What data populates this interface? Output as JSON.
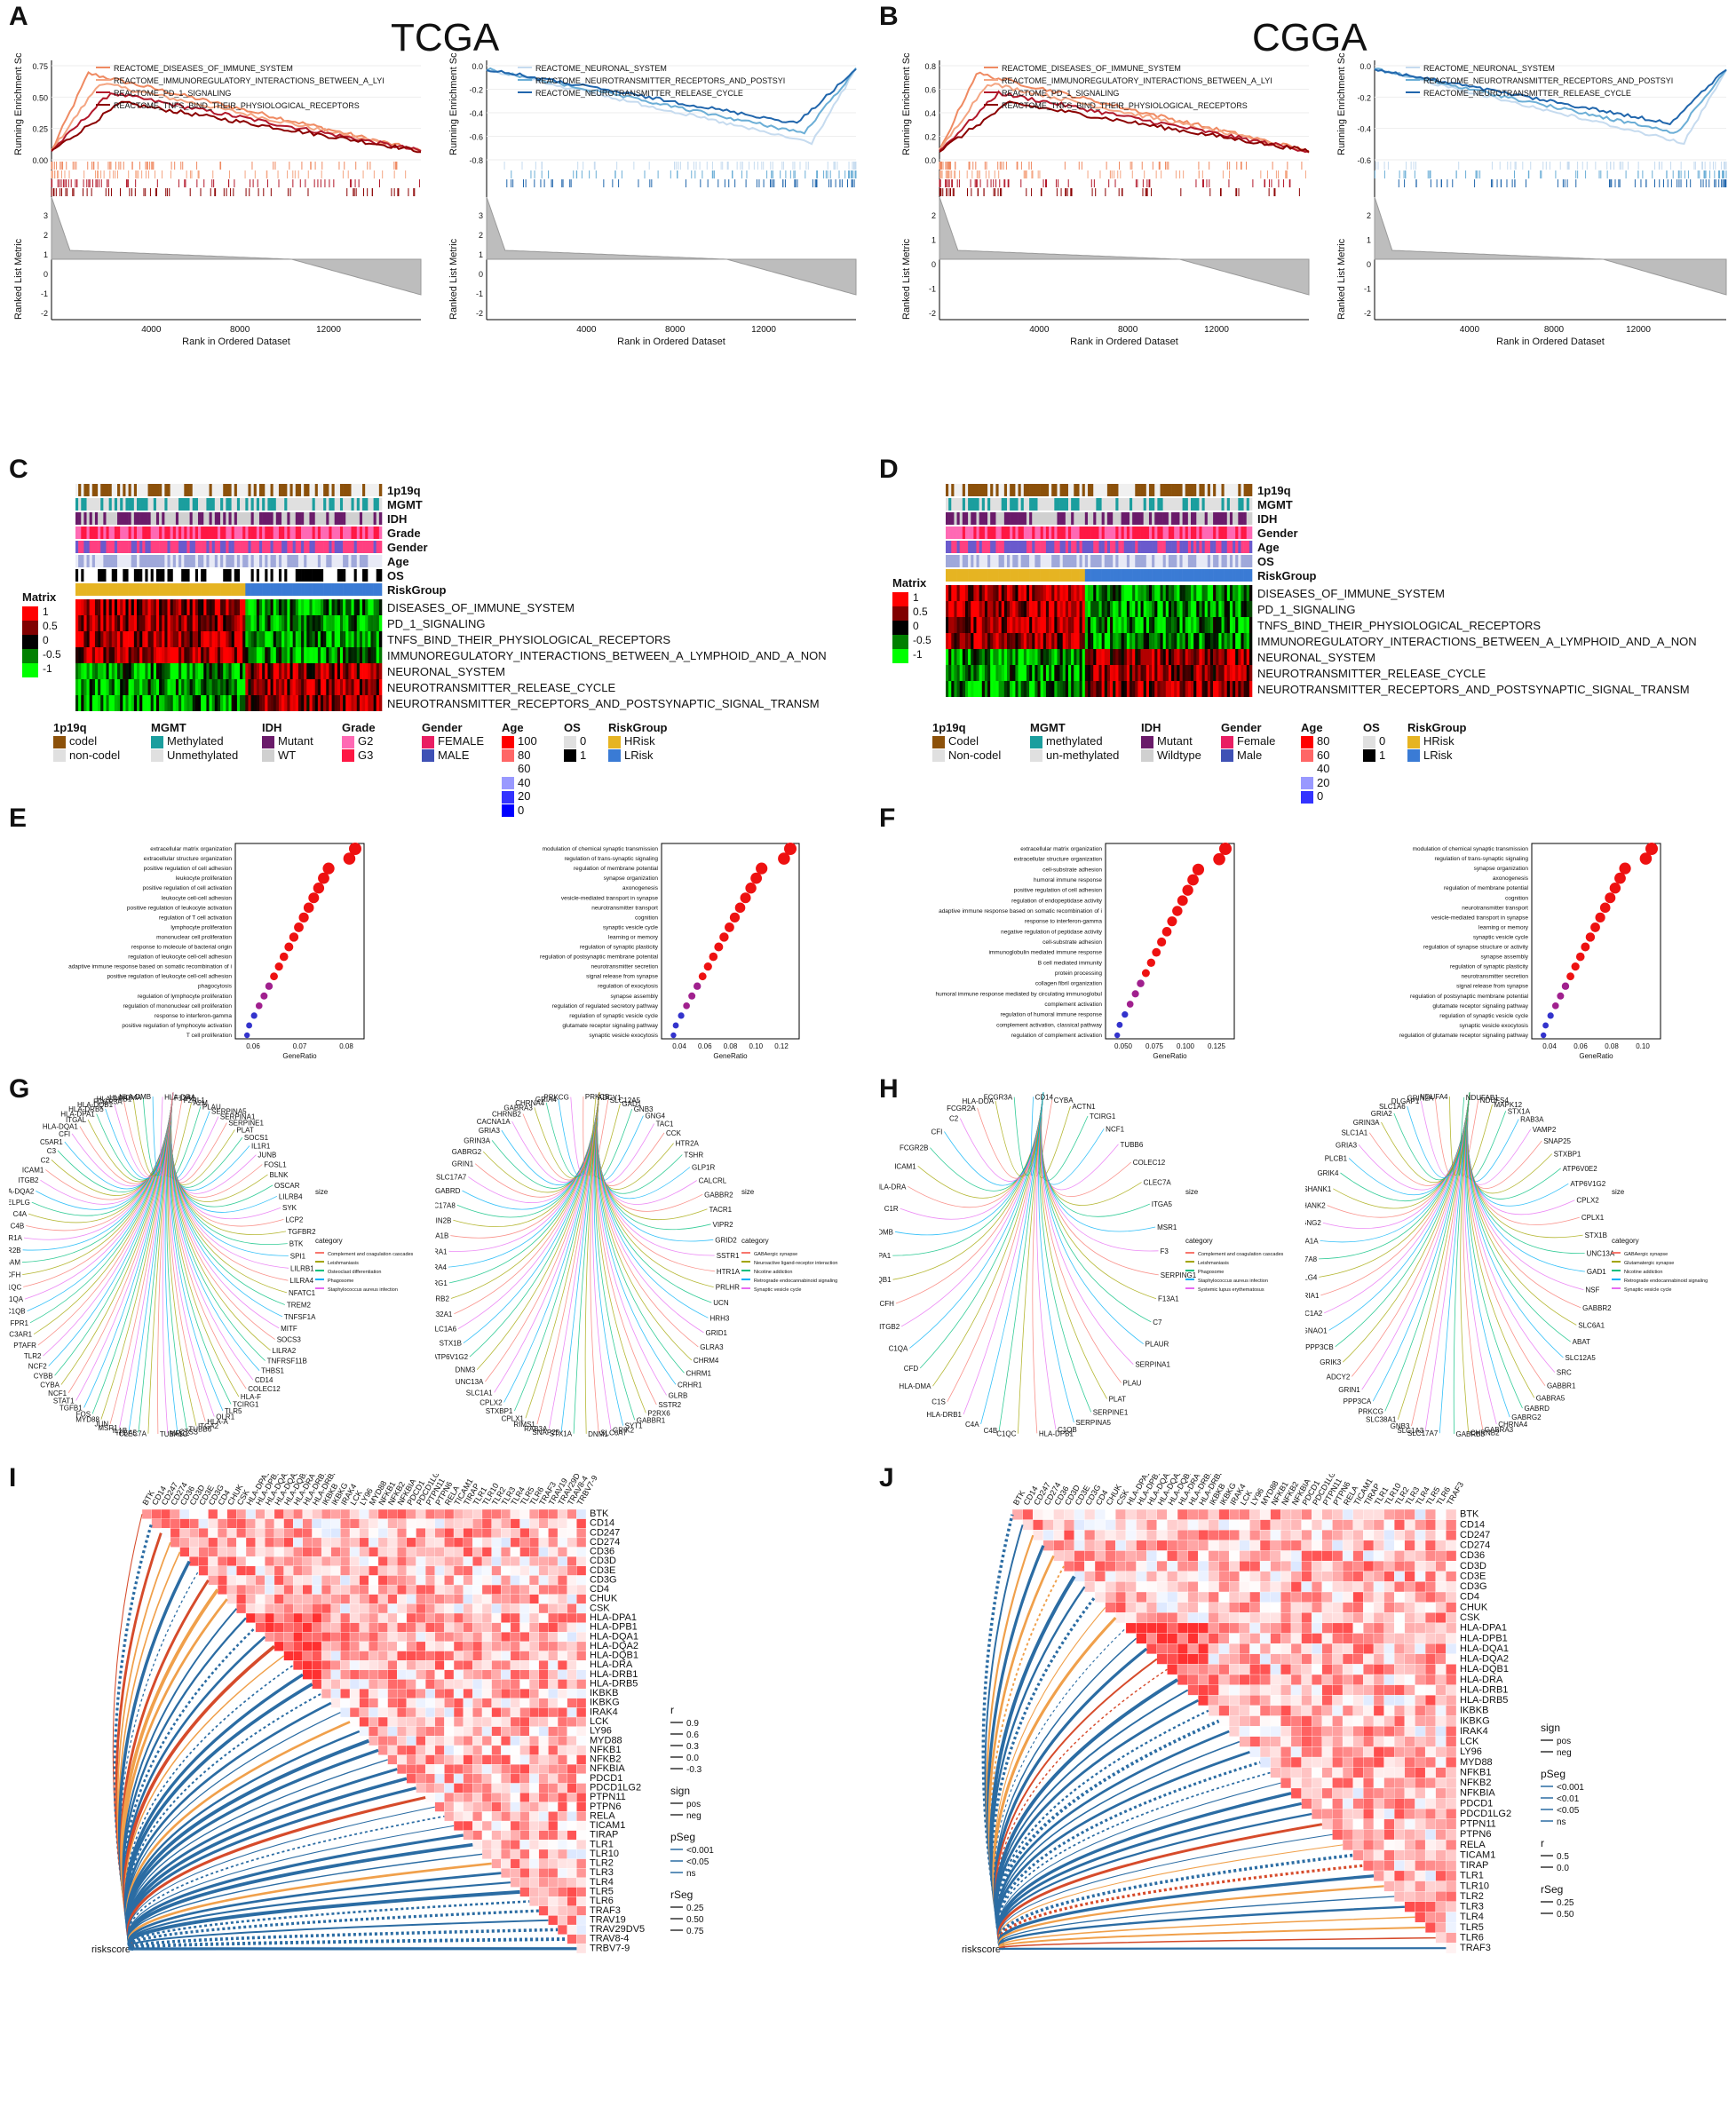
{
  "panels": {
    "A": "A",
    "B": "B",
    "C": "C",
    "D": "D",
    "E": "E",
    "F": "F",
    "G": "G",
    "H": "H",
    "I": "I",
    "J": "J"
  },
  "titles": {
    "tcga": "TCGA",
    "cgga": "CGGA"
  },
  "gsea": {
    "ylabel_top": "Running Enrichment Score",
    "ylabel_bottom": "Ranked List Metric",
    "xlabel": "Rank in Ordered Dataset",
    "xticks": [
      "4000",
      "8000",
      "12000"
    ],
    "rank_ticks": [
      "3",
      "2",
      "1",
      "0",
      "-1",
      "-2"
    ],
    "rank_ticks_b": [
      "2",
      "1",
      "0",
      "-1",
      "-2"
    ],
    "immune_terms": [
      "REACTOME_DISEASES_OF_IMMUNE_SYSTEM",
      "REACTOME_IMMUNOREGULATORY_INTERACTIONS_BETWEEN_A_LYI",
      "REACTOME_PD_1_SIGNALING",
      "REACTOME_TNFS_BIND_THEIR_PHYSIOLOGICAL_RECEPTORS"
    ],
    "neuro_terms": [
      "REACTOME_NEURONAL_SYSTEM",
      "REACTOME_NEUROTRANSMITTER_RECEPTORS_AND_POSTSYI",
      "REACTOME_NEUROTRANSMITTER_RELEASE_CYCLE"
    ],
    "A_immune_yticks": [
      "0.75",
      "0.50",
      "0.25",
      "0.00"
    ],
    "A_neuro_yticks": [
      "0.0",
      "-0.2",
      "-0.4",
      "-0.6",
      "-0.8"
    ],
    "B_immune_yticks": [
      "0.8",
      "0.6",
      "0.4",
      "0.2",
      "0.0"
    ],
    "B_neuro_yticks": [
      "0.0",
      "-0.2",
      "-0.4",
      "-0.6"
    ]
  },
  "heatmap": {
    "annot_rows": [
      "1p19q",
      "MGMT",
      "IDH",
      "Grade",
      "Gender",
      "Age",
      "OS",
      "RiskGroup"
    ],
    "annot_rows_D": [
      "1p19q",
      "MGMT",
      "IDH",
      "Gender",
      "Age",
      "OS",
      "RiskGroup"
    ],
    "pathways": [
      "DISEASES_OF_IMMUNE_SYSTEM",
      "PD_1_SIGNALING",
      "TNFS_BIND_THEIR_PHYSIOLOGICAL_RECEPTORS",
      "IMMUNOREGULATORY_INTERACTIONS_BETWEEN_A_LYMPHOID_AND_A_NON",
      "NEURONAL_SYSTEM",
      "NEUROTRANSMITTER_RELEASE_CYCLE",
      "NEUROTRANSMITTER_RECEPTORS_AND_POSTSYNAPTIC_SIGNAL_TRANSM"
    ],
    "matrix_title": "Matrix",
    "matrix_ticks": [
      "1",
      "0.5",
      "0",
      "-0.5",
      "-1"
    ],
    "legend_C": {
      "p1p19q": {
        "title": "1p19q",
        "items": [
          "codel",
          "non-codel"
        ]
      },
      "mgmt": {
        "title": "MGMT",
        "items": [
          "Methylated",
          "Unmethylated"
        ]
      },
      "idh": {
        "title": "IDH",
        "items": [
          "Mutant",
          "WT"
        ]
      },
      "grade": {
        "title": "Grade",
        "items": [
          "G2",
          "G3"
        ]
      },
      "gender": {
        "title": "Gender",
        "items": [
          "FEMALE",
          "MALE"
        ]
      },
      "age": {
        "title": "Age",
        "ticks": [
          "100",
          "80",
          "60",
          "40",
          "20",
          "0"
        ]
      },
      "os": {
        "title": "OS",
        "items": [
          "0",
          "1"
        ]
      },
      "risk": {
        "title": "RiskGroup",
        "items": [
          "HRisk",
          "LRisk"
        ]
      }
    },
    "legend_D": {
      "p1p19q": {
        "title": "1p19q",
        "items": [
          "Codel",
          "Non-codel"
        ]
      },
      "mgmt": {
        "title": "MGMT",
        "items": [
          "methylated",
          "un-methylated"
        ]
      },
      "idh": {
        "title": "IDH",
        "items": [
          "Mutant",
          "Wildtype"
        ]
      },
      "gender": {
        "title": "Gender",
        "items": [
          "Female",
          "Male"
        ]
      },
      "age": {
        "title": "Age",
        "ticks": [
          "80",
          "60",
          "40",
          "20",
          "0"
        ]
      },
      "os": {
        "title": "OS",
        "items": [
          "0",
          "1"
        ]
      },
      "risk": {
        "title": "RiskGroup",
        "items": [
          "HRisk",
          "LRisk"
        ]
      }
    }
  },
  "dotplots": {
    "xlabel": "GeneRatio",
    "E1_terms": [
      "extracellular matrix organization",
      "extracellular structure organization",
      "positive regulation of cell adhesion",
      "leukocyte proliferation",
      "positive regulation of cell activation",
      "leukocyte cell-cell adhesion",
      "positive regulation of leukocyte activation",
      "regulation of T cell activation",
      "lymphocyte proliferation",
      "mononuclear cell proliferation",
      "response to molecule of bacterial origin",
      "regulation of leukocyte cell-cell adhesion",
      "adaptive immune response based on somatic recombination of immune receptors built from immunoglobulin superfamily domains",
      "positive regulation of leukocyte cell-cell adhesion",
      "phagocytosis",
      "regulation of lymphocyte proliferation",
      "regulation of mononuclear cell proliferation",
      "response to interferon-gamma",
      "positive regulation of lymphocyte activation",
      "T cell proliferation"
    ],
    "E1_xticks": [
      "0.06",
      "0.07",
      "0.08"
    ],
    "E2_terms": [
      "modulation of chemical synaptic transmission",
      "regulation of trans-synaptic signaling",
      "regulation of membrane potential",
      "synapse organization",
      "axonogenesis",
      "vesicle-mediated transport in synapse",
      "neurotransmitter transport",
      "cognition",
      "synaptic vesicle cycle",
      "learning or memory",
      "regulation of synaptic plasticity",
      "regulation of postsynaptic membrane potential",
      "neurotransmitter secretion",
      "signal release from synapse",
      "regulation of exocytosis",
      "synapse assembly",
      "regulation of regulated secretory pathway",
      "regulation of synaptic vesicle cycle",
      "glutamate receptor signaling pathway",
      "synaptic vesicle exocytosis"
    ],
    "E2_xticks": [
      "0.04",
      "0.06",
      "0.08",
      "0.10",
      "0.12"
    ],
    "F1_terms": [
      "extracellular matrix organization",
      "extracellular structure organization",
      "cell-substrate adhesion",
      "humoral immune response",
      "positive regulation of cell adhesion",
      "regulation of endopeptidase activity",
      "adaptive immune response based on somatic recombination of immune receptors built from immunoglobulin superfamily domains",
      "response to interferon-gamma",
      "negative regulation of peptidase activity",
      "cell-substrate adhesion",
      "immunoglobulin mediated immune response",
      "B cell mediated immunity",
      "protein processing",
      "collagen fibril organization",
      "humoral immune response mediated by circulating immunoglobulin",
      "complement activation",
      "regulation of humoral immune response",
      "complement activation, classical pathway",
      "regulation of complement activation"
    ],
    "F1_xticks": [
      "0.050",
      "0.075",
      "0.100",
      "0.125"
    ],
    "F2_terms": [
      "modulation of chemical synaptic transmission",
      "regulation of trans-synaptic signaling",
      "synapse organization",
      "axonogenesis",
      "regulation of membrane potential",
      "cognition",
      "neurotransmitter transport",
      "vesicle-mediated transport in synapse",
      "learning or memory",
      "synaptic vesicle cycle",
      "regulation of synapse structure or activity",
      "synapse assembly",
      "regulation of synaptic plasticity",
      "neurotransmitter secretion",
      "signal release from synapse",
      "regulation of postsynaptic membrane potential",
      "glutamate receptor signaling pathway",
      "regulation of synaptic vesicle cycle",
      "synaptic vesicle exocytosis",
      "regulation of glutamate receptor signaling pathway"
    ],
    "F2_xticks": [
      "0.04",
      "0.06",
      "0.08",
      "0.10"
    ]
  },
  "cnet": {
    "G1_genes": [
      "F2RL1",
      "A2M",
      "PLAU",
      "SERPINA5",
      "SERPINA1",
      "SERPINE1",
      "PLAT",
      "SOCS1",
      "IL1R1",
      "JUNB",
      "FOSL1",
      "BLNK",
      "OSCAR",
      "LILRB4",
      "SYK",
      "LCP2",
      "TGFBR2",
      "BTK",
      "SPI1",
      "LILRB1",
      "LILRA4",
      "NFATC1",
      "TREM2",
      "TNFSF1A",
      "MITF",
      "SOCS3",
      "LILRA2",
      "TNFRSF11B",
      "THBS1",
      "CD14",
      "COLEC12",
      "HLA-F",
      "TCIRG1",
      "TLR5",
      "OLR1",
      "HLA-A",
      "ITGA2",
      "TUBB6",
      "CTSS",
      "MRC2",
      "TUBA1C",
      "CLEC7A",
      "ITGA5",
      "IL1B",
      "MSR1",
      "JUN",
      "MYD88",
      "FOS",
      "TGFB1",
      "STAT1",
      "NCF1",
      "CYBA",
      "CYBB",
      "NCF2",
      "TLR2",
      "PTAFR",
      "C3AR1",
      "FPR1",
      "C1QB",
      "C1QA",
      "C1QC",
      "CFH",
      "ITGAM",
      "FCGR2B",
      "FCGR1A",
      "C4B",
      "C4A",
      "SELPLG",
      "HLA-DQA2",
      "ITGB2",
      "ICAM1",
      "C2",
      "C3",
      "C5AR1",
      "CFI",
      "HLA-DQA1",
      "ITGAL",
      "HLA-DPA1",
      "HLA-DRB5",
      "HLA-DQB1",
      "FCGR3A",
      "HLA-DRB1",
      "HLA-DMA",
      "HLA-DMB",
      "HLA-DRA",
      "F13A1"
    ],
    "G1_cats": [
      "Complement and coagulation cascades",
      "Leishmaniasis",
      "Osteoclast differentiation",
      "Phagosome",
      "Staphylococcus aureus infection"
    ],
    "G2_genes": [
      "SLC12A5",
      "GAD1",
      "GNB3",
      "GNG4",
      "TAC1",
      "CCK",
      "HTR2A",
      "TSHR",
      "GLP1R",
      "CALCRL",
      "GABBR2",
      "TACR1",
      "VIPR2",
      "GRID2",
      "SSTR1",
      "HTR1A",
      "PRLHR",
      "UCN",
      "HRH3",
      "GRID1",
      "GLRA3",
      "CHRM4",
      "CHRM1",
      "CRHR1",
      "GLRB",
      "SSTR2",
      "P2RX6",
      "GABBR1",
      "SYT1",
      "GRIK2",
      "SLC6A7",
      "DNM1",
      "STX1A",
      "SNAP25",
      "RAB3A",
      "RIMS1",
      "CPLX1",
      "STXBP1",
      "CPLX2",
      "SLC1A1",
      "UNC13A",
      "DNM3",
      "ATP6V1G2",
      "STX1B",
      "SLC1A6",
      "SLC32A1",
      "GABRB2",
      "GABRG1",
      "GABRA4",
      "GABRA1",
      "CACNA1B",
      "GRIN2B",
      "SLC17A8",
      "GABRD",
      "SLC17A7",
      "GRIN1",
      "GABRG2",
      "GRIN3A",
      "GRIA3",
      "CACNA1A",
      "CHRNB2",
      "GABRA3",
      "CHRNA4",
      "GRIA4",
      "PRKCG",
      "PRKCB",
      "ADCY1"
    ],
    "G2_cats": [
      "GABAergic synapse",
      "Neuroactive ligand-receptor interaction",
      "Nicotine addiction",
      "Retrograde endocannabinoid signaling",
      "Synaptic vesicle cycle"
    ],
    "H1_genes": [
      "CYBA",
      "ACTN1",
      "TCIRG1",
      "NCF1",
      "TUBB6",
      "COLEC12",
      "CLEC7A",
      "ITGA5",
      "MSR1",
      "F3",
      "SERPING1",
      "F13A1",
      "C7",
      "PLAUR",
      "SERPINA1",
      "PLAU",
      "PLAT",
      "SERPINE1",
      "SERPINA5",
      "C1QB",
      "HLA-DPB1",
      "C1QC",
      "C4B",
      "C4A",
      "HLA-DRB1",
      "C1S",
      "HLA-DMA",
      "CFD",
      "C1QA",
      "ITGB2",
      "CFH",
      "HLA-DQB1",
      "HLA-DPA1",
      "HLA-DMB",
      "C1R",
      "HLA-DRA",
      "ICAM1",
      "FCGR2B",
      "CFI",
      "C2",
      "FCGR2A",
      "HLA-DOA",
      "FCGR3A",
      "CD14"
    ],
    "H1_cats": [
      "Complement and coagulation cascades",
      "Leishmaniasis",
      "Phagosome",
      "Staphylococcus aureus infection",
      "Systemic lupus erythematosus"
    ],
    "H2_genes": [
      "NDUFS4",
      "MAPK12",
      "STX1A",
      "RAB3A",
      "VAMP2",
      "SNAP25",
      "STXBP1",
      "ATP6V0E2",
      "ATP6V1G2",
      "CPLX2",
      "CPLX1",
      "STX1B",
      "UNC13A",
      "GAD1",
      "NSF",
      "GABBR2",
      "SLC6A1",
      "ABAT",
      "SLC12A5",
      "SRC",
      "GABBR1",
      "GABRA5",
      "GABRD",
      "GABRG2",
      "CHRNA4",
      "GABRA3",
      "CHRNB2",
      "GABRB3",
      "SLC17A7",
      "SLC1A3",
      "GNB3",
      "SLC38A1",
      "PRKCG",
      "PPP3CA",
      "GRIN1",
      "ADCY2",
      "GRIK3",
      "PPP3CB",
      "GNAO1",
      "SLC1A2",
      "GRIA1",
      "DLG4",
      "SLC17A8",
      "CACNA1A",
      "GNG2",
      "SHANK2",
      "SHANK1",
      "GRIK4",
      "PLCB1",
      "GRIA3",
      "SLC1A1",
      "GRIN3A",
      "GRIA2",
      "SLC1A6",
      "DLGAP1",
      "GRIN2A",
      "NDUFA4",
      "NDUFAB1"
    ],
    "H2_cats": [
      "GABAergic synapse",
      "Glutamatergic synapse",
      "Nicotine addiction",
      "Retrograde endocannabinoid signaling",
      "Synaptic vesicle cycle"
    ],
    "size_title": "size",
    "category_title": "category"
  },
  "corr": {
    "I_genes": [
      "BTK",
      "CD14",
      "CD247",
      "CD274",
      "CD36",
      "CD3D",
      "CD3E",
      "CD3G",
      "CD4",
      "CHUK",
      "CSK",
      "HLA-DPA1",
      "HLA-DPB1",
      "HLA-DQA1",
      "HLA-DQA2",
      "HLA-DQB1",
      "HLA-DRA",
      "HLA-DRB1",
      "HLA-DRB5",
      "IKBKB",
      "IKBKG",
      "IRAK4",
      "LCK",
      "LY96",
      "MYD88",
      "NFKB1",
      "NFKB2",
      "NFKBIA",
      "PDCD1",
      "PDCD1LG2",
      "PTPN11",
      "PTPN6",
      "RELA",
      "TICAM1",
      "TIRAP",
      "TLR1",
      "TLR10",
      "TLR2",
      "TLR3",
      "TLR4",
      "TLR5",
      "TLR6",
      "TRAF3",
      "TRAV19",
      "TRAV29DV5",
      "TRAV8-4",
      "TRBV7-9"
    ],
    "J_genes": [
      "BTK",
      "CD14",
      "CD247",
      "CD274",
      "CD36",
      "CD3D",
      "CD3E",
      "CD3G",
      "CD4",
      "CHUK",
      "CSK",
      "HLA-DPA1",
      "HLA-DPB1",
      "HLA-DQA1",
      "HLA-DQA2",
      "HLA-DQB1",
      "HLA-DRA",
      "HLA-DRB1",
      "HLA-DRB5",
      "IKBKB",
      "IKBKG",
      "IRAK4",
      "LCK",
      "LY96",
      "MYD88",
      "NFKB1",
      "NFKB2",
      "NFKBIA",
      "PDCD1",
      "PDCD1LG2",
      "PTPN11",
      "PTPN6",
      "RELA",
      "TICAM1",
      "TIRAP",
      "TLR1",
      "TLR10",
      "TLR2",
      "TLR3",
      "TLR4",
      "TLR5",
      "TLR6",
      "TRAF3"
    ],
    "riskscore": "riskscore",
    "I_legend": {
      "r_title": "r",
      "r_ticks": [
        "0.9",
        "0.6",
        "0.3",
        "0.0",
        "-0.3"
      ],
      "sign_title": "sign",
      "sign": [
        "pos",
        "neg"
      ],
      "pseg_title": "pSeg",
      "pseg": [
        "<0.001",
        "<0.05",
        "ns"
      ],
      "rseg_title": "rSeg",
      "rseg": [
        "0.25",
        "0.50",
        "0.75"
      ]
    },
    "J_legend": {
      "sign_title": "sign",
      "sign": [
        "pos",
        "neg"
      ],
      "pseg_title": "pSeg",
      "pseg": [
        "<0.001",
        "<0.01",
        "<0.05",
        "ns"
      ],
      "r_title": "r",
      "r_ticks": [
        "0.5",
        "0.0"
      ],
      "rseg_title": "rSeg",
      "rseg": [
        "0.25",
        "0.50"
      ]
    }
  },
  "colors": {
    "red1": "#b2182b",
    "red2": "#ef8a62",
    "red3": "#f4a582",
    "darkred": "#8b0000",
    "blue1": "#2166ac",
    "blue2": "#6baed6",
    "blue3": "#c6dbef",
    "heat_hi": "#ff0000",
    "heat_mid": "#000000",
    "heat_lo": "#00ff00"
  }
}
